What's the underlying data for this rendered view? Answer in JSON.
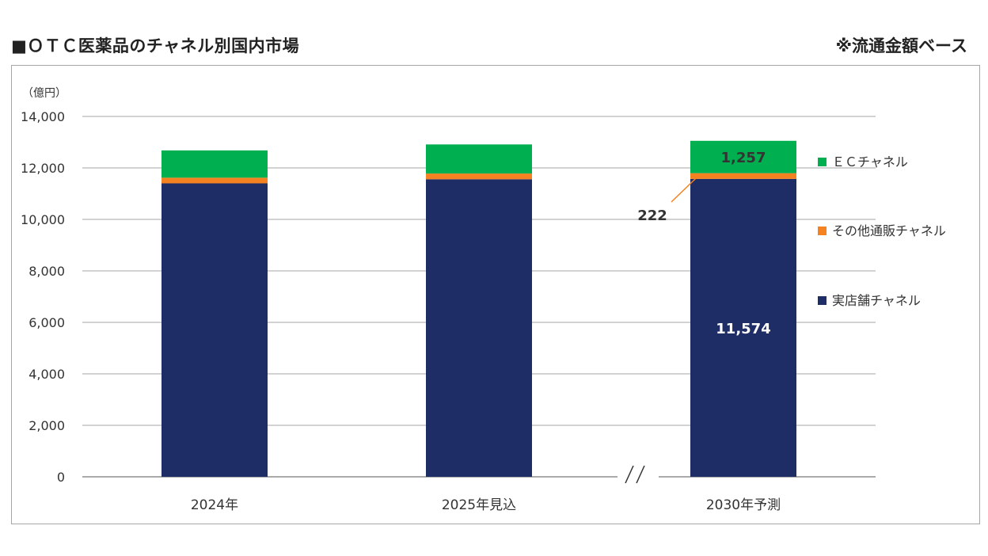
{
  "title": "■ＯＴＣ医薬品のチャネル別国内市場",
  "note": "※流通金額ベース",
  "colors": {
    "store": "#1f2d66",
    "other": "#f58220",
    "ec": "#00b050",
    "grid": "#a6a6a6"
  },
  "chart_data": {
    "type": "bar",
    "stacked": true,
    "unit_label": "（億円）",
    "categories": [
      "2024年",
      "2025年見込",
      "2030年予測"
    ],
    "series": [
      {
        "name": "実店舗チャネル",
        "values": [
          11400,
          11560,
          11574
        ]
      },
      {
        "name": "その他通販チャネル",
        "values": [
          220,
          222,
          222
        ]
      },
      {
        "name": "ＥＣチャネル",
        "values": [
          1060,
          1130,
          1257
        ]
      }
    ],
    "ylim": [
      0,
      14000
    ],
    "yticks": [
      "0",
      "2,000",
      "4,000",
      "6,000",
      "8,000",
      "10,000",
      "12,000",
      "14,000"
    ],
    "data_labels": {
      "store_2030": "11,574",
      "other_2030": "222",
      "ec_2030": "1,257"
    },
    "legend_position": "right",
    "grid": true
  }
}
